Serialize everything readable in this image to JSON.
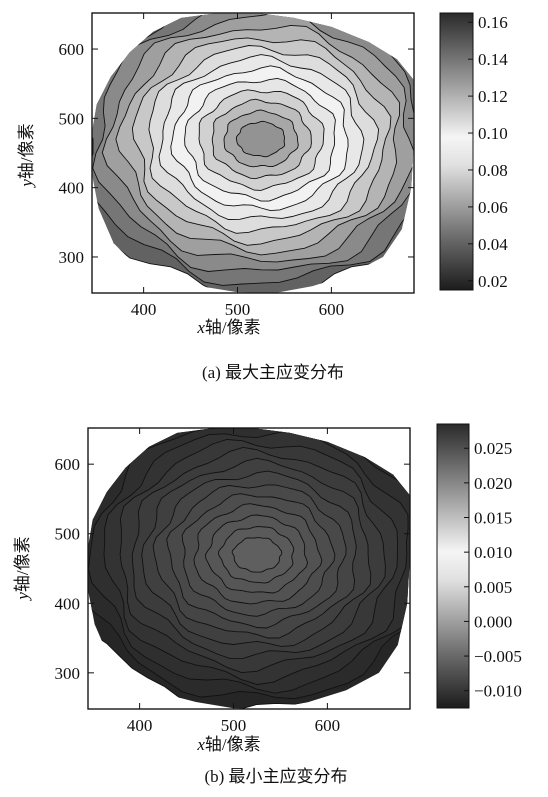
{
  "chart_data": [
    {
      "type": "heatmap",
      "subtype": "contour",
      "caption": "(a)  最大主应变分布",
      "xlabel_var": "x",
      "xlabel_unit": "轴/像素",
      "ylabel_var": "y",
      "ylabel_unit": "轴/像素",
      "xlim": [
        345,
        688
      ],
      "ylim": [
        248,
        652
      ],
      "xticks": [
        400,
        500,
        600
      ],
      "yticks": [
        300,
        400,
        500,
        600
      ],
      "colorbar": {
        "ticks": [
          "0.16",
          "0.14",
          "0.12",
          "0.10",
          "0.08",
          "0.06",
          "0.04",
          "0.02"
        ],
        "values": [
          0.16,
          0.14,
          0.12,
          0.1,
          0.08,
          0.06,
          0.04,
          0.02
        ],
        "range": [
          0.015,
          0.165
        ],
        "colormap": "grayscale"
      },
      "field": {
        "min": 0.04,
        "max": 0.13
      },
      "grid": false
    },
    {
      "type": "heatmap",
      "subtype": "contour",
      "caption": "(b)  最小主应变分布",
      "xlabel_var": "x",
      "xlabel_unit": "轴/像素",
      "ylabel_var": "y",
      "ylabel_unit": "轴/像素",
      "xlim": [
        345,
        688
      ],
      "ylim": [
        248,
        652
      ],
      "xticks": [
        400,
        500,
        600
      ],
      "yticks": [
        300,
        400,
        500,
        600
      ],
      "colorbar": {
        "ticks": [
          "0.025",
          "0.020",
          "0.015",
          "0.010",
          "0.005",
          "0.000",
          "−0.005",
          "−0.010"
        ],
        "values": [
          0.025,
          0.02,
          0.015,
          0.01,
          0.005,
          0.0,
          -0.005,
          -0.01
        ],
        "range": [
          -0.0125,
          0.0285
        ],
        "colormap": "grayscale"
      },
      "field": {
        "min": -0.0115,
        "max": -0.006
      },
      "grid": false
    }
  ],
  "colors": {
    "high": "#2a2a2a",
    "mid": "#f2f2f2",
    "low": "#1a1a1a",
    "contour": "#111111"
  }
}
